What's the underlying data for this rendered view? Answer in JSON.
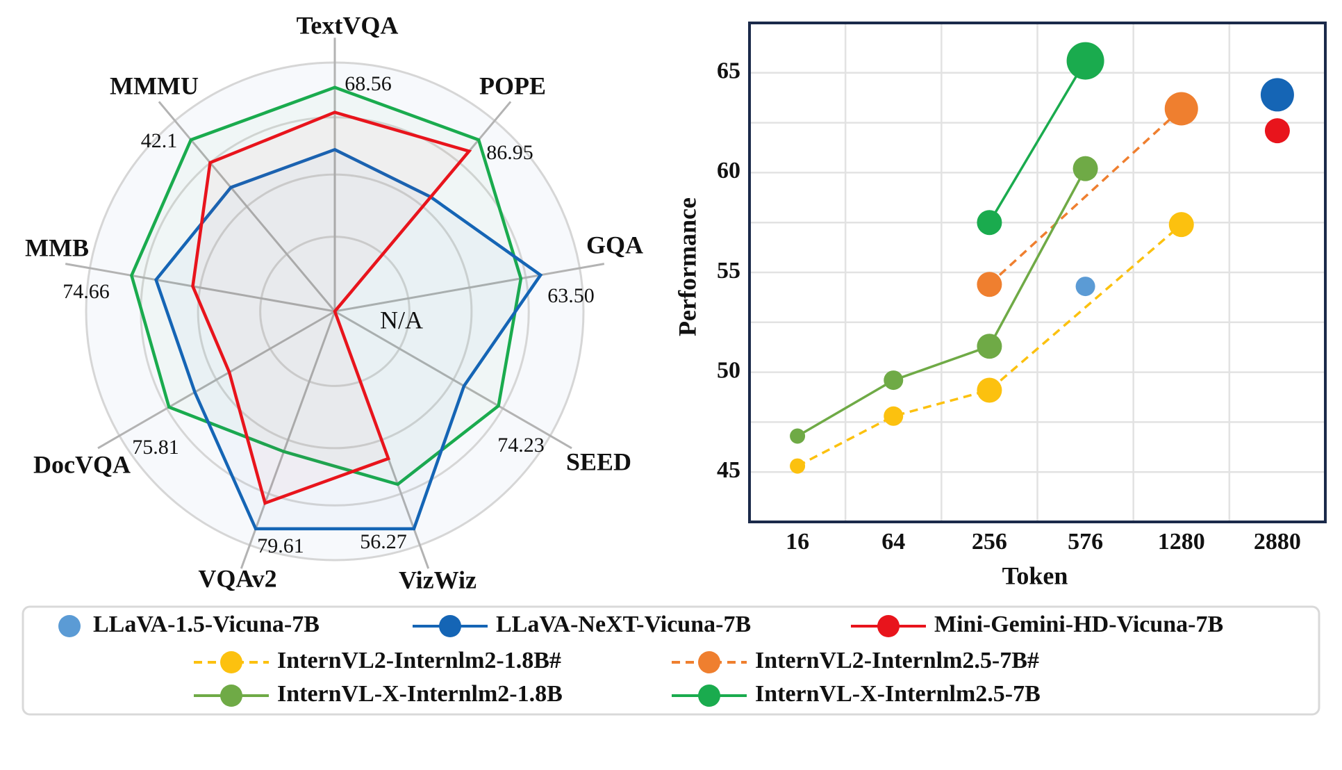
{
  "chart_data": [
    {
      "type": "radar",
      "axes": [
        "TextVQA",
        "POPE",
        "GQA",
        "SEED",
        "VizWiz",
        "VQAv2",
        "DocVQA",
        "MMB",
        "MMMU"
      ],
      "axis_value_labels": [
        "68.56",
        "86.95",
        "63.50",
        "74.23",
        "56.27",
        "79.61",
        "75.81",
        "74.66",
        "42.1"
      ],
      "center_label": "N/A",
      "series": [
        {
          "name": "InternVL-X-Internlm2.5-7B",
          "color": "#1aab4e",
          "values": [
            0.9,
            0.9,
            0.76,
            0.76,
            0.74,
            0.6,
            0.77,
            0.83,
            0.9
          ]
        },
        {
          "name": "LLaVA-NeXT-Vicuna-7B",
          "color": "#1565b5",
          "values": [
            0.65,
            0.6,
            0.84,
            0.6,
            0.93,
            0.93,
            0.65,
            0.73,
            0.65
          ]
        },
        {
          "name": "Mini-Gemini-HD-Vicuna-7B",
          "color": "#e8141c",
          "values": [
            0.8,
            0.84,
            0.0,
            0.0,
            0.63,
            0.82,
            0.49,
            0.58,
            0.78
          ]
        }
      ]
    },
    {
      "type": "scatter-line",
      "xlabel": "Token",
      "ylabel": "Performance",
      "categories": [
        "16",
        "64",
        "256",
        "576",
        "1280",
        "2880"
      ],
      "ylim": [
        42.5,
        67.5
      ],
      "yticks": [
        45,
        50,
        55,
        60,
        65
      ],
      "grid": true,
      "series": [
        {
          "name": "InternVL-X-Internlm2.5-7B",
          "color": "#1aab4e",
          "line": "solid",
          "points": [
            {
              "x": "256",
              "y": 57.5,
              "size": 3
            },
            {
              "x": "576",
              "y": 65.6,
              "size": 5
            }
          ]
        },
        {
          "name": "InternVL2-Internlm2.5-7B#",
          "color": "#ef7f2f",
          "line": "dashed",
          "points": [
            {
              "x": "256",
              "y": 54.4,
              "size": 3
            },
            {
              "x": "1280",
              "y": 63.2,
              "size": 4
            }
          ]
        },
        {
          "name": "InternVL-X-Internlm2-1.8B",
          "color": "#6faa46",
          "line": "solid",
          "points": [
            {
              "x": "16",
              "y": 46.8,
              "size": 1
            },
            {
              "x": "64",
              "y": 49.6,
              "size": 2
            },
            {
              "x": "256",
              "y": 51.3,
              "size": 3
            },
            {
              "x": "576",
              "y": 60.2,
              "size": 3
            }
          ]
        },
        {
          "name": "InternVL2-Internlm2-1.8B#",
          "color": "#fcc10f",
          "line": "dashed",
          "points": [
            {
              "x": "16",
              "y": 45.3,
              "size": 1
            },
            {
              "x": "64",
              "y": 47.8,
              "size": 2
            },
            {
              "x": "256",
              "y": 49.1,
              "size": 3
            },
            {
              "x": "1280",
              "y": 57.4,
              "size": 3
            }
          ]
        },
        {
          "name": "LLaVA-1.5-Vicuna-7B",
          "color": "#5b9bd5",
          "line": "none",
          "points": [
            {
              "x": "576",
              "y": 54.3,
              "size": 2
            }
          ]
        },
        {
          "name": "LLaVA-NeXT-Vicuna-7B",
          "color": "#1565b5",
          "line": "none",
          "points": [
            {
              "x": "2880",
              "y": 63.9,
              "size": 4
            }
          ]
        },
        {
          "name": "Mini-Gemini-HD-Vicuna-7B",
          "color": "#e8141c",
          "line": "none",
          "points": [
            {
              "x": "2880",
              "y": 62.1,
              "size": 3
            }
          ]
        }
      ]
    }
  ],
  "legend": [
    {
      "label": "LLaVA-1.5-Vicuna-7B",
      "color": "#5b9bd5",
      "line": "none"
    },
    {
      "label": "LLaVA-NeXT-Vicuna-7B",
      "color": "#1565b5",
      "line": "solid"
    },
    {
      "label": "Mini-Gemini-HD-Vicuna-7B",
      "color": "#e8141c",
      "line": "solid"
    },
    {
      "label": "InternVL2-Internlm2-1.8B#",
      "color": "#fcc10f",
      "line": "dashed"
    },
    {
      "label": "InternVL2-Internlm2.5-7B#",
      "color": "#ef7f2f",
      "line": "dashed"
    },
    {
      "label": "InternVL-X-Internlm2-1.8B",
      "color": "#6faa46",
      "line": "solid"
    },
    {
      "label": "InternVL-X-Internlm2.5-7B",
      "color": "#1aab4e",
      "line": "solid"
    }
  ]
}
